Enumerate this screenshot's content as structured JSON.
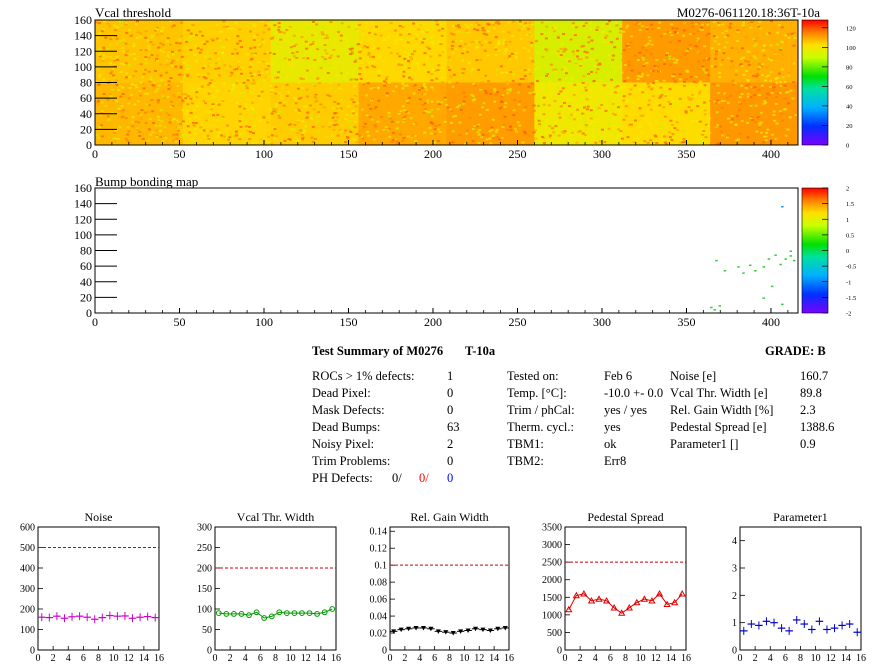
{
  "heatmap1": {
    "title": "Vcal threshold",
    "header_right": "M0276-061120.18:36T-10a",
    "x_ticks": [
      "0",
      "50",
      "100",
      "150",
      "200",
      "250",
      "300",
      "350",
      "400"
    ],
    "y_ticks": [
      "0",
      "20",
      "40",
      "60",
      "80",
      "100",
      "120",
      "140",
      "160"
    ],
    "colorbar_ticks": [
      "0",
      "20",
      "40",
      "60",
      "80",
      "100",
      "120"
    ]
  },
  "heatmap2": {
    "title": "Bump bonding map",
    "x_ticks": [
      "0",
      "50",
      "100",
      "150",
      "200",
      "250",
      "300",
      "350",
      "400"
    ],
    "y_ticks": [
      "0",
      "20",
      "40",
      "60",
      "80",
      "100",
      "120",
      "140",
      "160"
    ],
    "colorbar_ticks": [
      "-2",
      "-1.5",
      "-1",
      "-0.5",
      "0",
      "0.5",
      "1",
      "1.5",
      "2"
    ]
  },
  "summary": {
    "title": "Test Summary of M0276",
    "temp_tag": "T-10a",
    "grade": "GRADE:  B",
    "left": [
      {
        "label": "ROCs > 1% defects:",
        "value": "1"
      },
      {
        "label": "Dead Pixel:",
        "value": "0"
      },
      {
        "label": "Mask Defects:",
        "value": "0"
      },
      {
        "label": "Dead Bumps:",
        "value": "63"
      },
      {
        "label": "Noisy Pixel:",
        "value": "2"
      },
      {
        "label": "Trim Problems:",
        "value": "0"
      }
    ],
    "ph_defects": {
      "label": "PH Defects:",
      "v1": "0/",
      "v2": "0/",
      "v3": "0"
    },
    "middle": [
      {
        "label": "Tested on:",
        "value": "Feb 6"
      },
      {
        "label": "Temp. [°C]:",
        "value": "-10.0 +- 0.0"
      },
      {
        "label": "Trim / phCal:",
        "value": "yes / yes"
      },
      {
        "label": "Therm. cycl.:",
        "value": "yes"
      },
      {
        "label": "TBM1:",
        "value": "ok"
      },
      {
        "label": "TBM2:",
        "value": "Err8"
      }
    ],
    "right": [
      {
        "label": "Noise [e]",
        "value": "160.7"
      },
      {
        "label": "Vcal Thr. Width [e]",
        "value": "89.8"
      },
      {
        "label": "Rel. Gain Width [%]",
        "value": "2.3"
      },
      {
        "label": "Pedestal Spread [e]",
        "value": "1388.6"
      },
      {
        "label": "Parameter1 []",
        "value": "0.9"
      }
    ]
  },
  "colors": {
    "red": "#ff0000",
    "blue": "#0000ff",
    "cut": "#cc0000"
  },
  "chart_data": [
    {
      "type": "scatter",
      "title": "Noise",
      "color": "#cc00cc",
      "marker": "plus",
      "x": [
        0,
        1,
        2,
        3,
        4,
        5,
        6,
        7,
        8,
        9,
        10,
        11,
        12,
        13,
        14,
        15
      ],
      "values": [
        160,
        158,
        165,
        155,
        162,
        165,
        160,
        150,
        158,
        168,
        165,
        166,
        155,
        160,
        163,
        158
      ],
      "xlim": [
        0,
        16
      ],
      "ylim": [
        0,
        600
      ],
      "cut": 500,
      "yticks": [
        "0",
        "100",
        "200",
        "300",
        "400",
        "500",
        "600"
      ]
    },
    {
      "type": "line",
      "title": "Vcal Thr. Width",
      "color": "#009900",
      "marker": "circle",
      "x": [
        0,
        1,
        2,
        3,
        4,
        5,
        6,
        7,
        8,
        9,
        10,
        11,
        12,
        13,
        14,
        15
      ],
      "values": [
        90,
        88,
        88,
        88,
        85,
        92,
        78,
        82,
        92,
        90,
        90,
        90,
        90,
        88,
        92,
        100
      ],
      "xlim": [
        0,
        16
      ],
      "ylim": [
        0,
        300
      ],
      "cut": 200,
      "yticks": [
        "0",
        "50",
        "100",
        "150",
        "200",
        "250",
        "300"
      ]
    },
    {
      "type": "scatter",
      "title": "Rel. Gain Width",
      "color": "#000000",
      "marker": "triangle-down",
      "x": [
        0,
        1,
        2,
        3,
        4,
        5,
        6,
        7,
        8,
        9,
        10,
        11,
        12,
        13,
        14,
        15
      ],
      "values": [
        0.022,
        0.024,
        0.025,
        0.026,
        0.026,
        0.025,
        0.022,
        0.021,
        0.02,
        0.022,
        0.023,
        0.025,
        0.024,
        0.023,
        0.025,
        0.026
      ],
      "xlim": [
        0,
        16
      ],
      "ylim": [
        0,
        0.145
      ],
      "cut": 0.1,
      "yticks": [
        "0",
        "0.02",
        "0.04",
        "0.06",
        "0.08",
        "0.1",
        "0.12",
        "0.14"
      ]
    },
    {
      "type": "line",
      "title": "Pedestal Spread",
      "color": "#dd0000",
      "marker": "triangle-up",
      "x": [
        0,
        1,
        2,
        3,
        4,
        5,
        6,
        7,
        8,
        9,
        10,
        11,
        12,
        13,
        14,
        15
      ],
      "values": [
        1150,
        1550,
        1600,
        1400,
        1450,
        1400,
        1200,
        1050,
        1200,
        1350,
        1450,
        1400,
        1600,
        1300,
        1350,
        1600
      ],
      "xlim": [
        0,
        16
      ],
      "ylim": [
        0,
        3500
      ],
      "cut": 2500,
      "yticks": [
        "0",
        "500",
        "1000",
        "1500",
        "2000",
        "2500",
        "3000",
        "3500"
      ]
    },
    {
      "type": "scatter",
      "title": "Parameter1",
      "color": "#0000cc",
      "marker": "plus",
      "x": [
        0,
        1,
        2,
        3,
        4,
        5,
        6,
        7,
        8,
        9,
        10,
        11,
        12,
        13,
        14,
        15
      ],
      "values": [
        0.7,
        0.95,
        0.9,
        1.05,
        1.0,
        0.8,
        0.7,
        1.1,
        0.95,
        0.75,
        1.05,
        0.75,
        0.8,
        0.9,
        0.95,
        0.65
      ],
      "xlim": [
        0,
        16
      ],
      "ylim": [
        0,
        4.5
      ],
      "yticks": [
        "0",
        "1",
        "2",
        "3",
        "4"
      ]
    }
  ]
}
